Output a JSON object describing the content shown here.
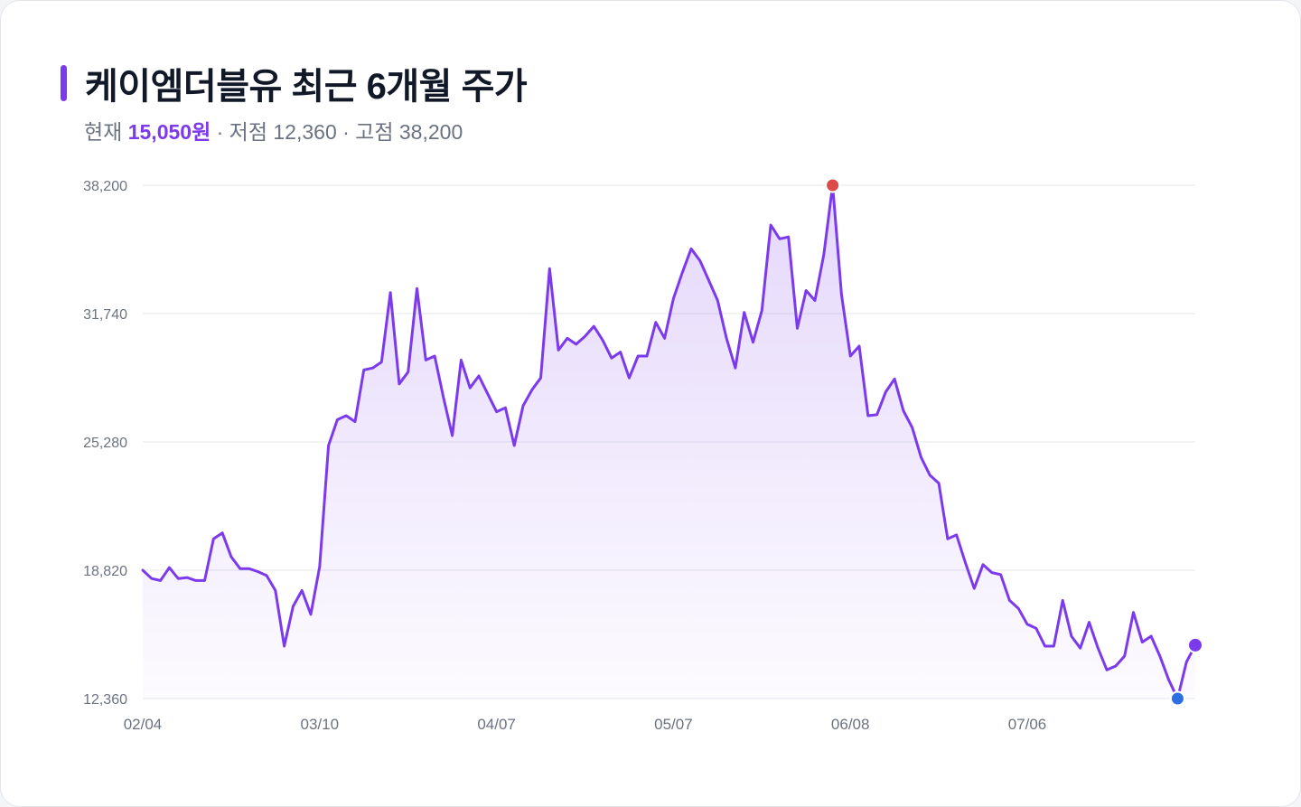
{
  "header": {
    "title": "케이엠더블유 최근 6개월 주가",
    "current_label": "현재",
    "current_value": "15,050원",
    "low_text": "· 저점 12,360",
    "high_text": "· 고점 38,200"
  },
  "colors": {
    "accent": "#7c3aed",
    "high_marker": "#dc4a4a",
    "low_marker": "#2b6fe0",
    "last_marker": "#7c3aed",
    "grid": "#e5e7eb"
  },
  "chart_data": {
    "type": "area",
    "title": "케이엠더블유 최근 6개월 주가",
    "xlabel": "",
    "ylabel": "",
    "ylim": [
      12360,
      38200
    ],
    "yticks": [
      12360,
      18820,
      25280,
      31740,
      38200
    ],
    "ytick_labels": [
      "12,360",
      "18,820",
      "25,280",
      "31,740",
      "38,200"
    ],
    "xtick_labels": [
      {
        "label": "02/04",
        "index": 0
      },
      {
        "label": "03/10",
        "index": 20
      },
      {
        "label": "04/07",
        "index": 40
      },
      {
        "label": "05/07",
        "index": 60
      },
      {
        "label": "06/08",
        "index": 80
      },
      {
        "label": "07/06",
        "index": 100
      }
    ],
    "grid": true,
    "series": [
      {
        "values": [
          18820,
          18400,
          18300,
          18950,
          18400,
          18450,
          18300,
          18300,
          20400,
          20700,
          19500,
          18900,
          18900,
          18750,
          18550,
          17800,
          15000,
          17000,
          17800,
          16600,
          19000,
          25100,
          26400,
          26600,
          26300,
          28900,
          29000,
          29300,
          32800,
          28200,
          28800,
          33000,
          29400,
          29600,
          27500,
          25600,
          29400,
          28000,
          28600,
          27700,
          26800,
          27000,
          25100,
          27100,
          27900,
          28500,
          34000,
          29900,
          30500,
          30200,
          30600,
          31100,
          30400,
          29500,
          29800,
          28500,
          29600,
          29600,
          31300,
          30500,
          32500,
          33800,
          35000,
          34400,
          33400,
          32400,
          30500,
          29000,
          31800,
          30300,
          31900,
          36200,
          35500,
          35600,
          31000,
          32900,
          32400,
          34700,
          38200,
          32700,
          29600,
          30100,
          26600,
          26650,
          27800,
          28450,
          26850,
          26000,
          24500,
          23600,
          23200,
          20400,
          20600,
          19200,
          17900,
          19100,
          18700,
          18600,
          17300,
          16900,
          16100,
          15900,
          15000,
          15000,
          17300,
          15500,
          14900,
          16200,
          14900,
          13800,
          14000,
          14500,
          16700,
          15200,
          15500,
          14500,
          13300,
          12360,
          14200,
          15050
        ]
      }
    ],
    "markers": [
      {
        "type": "high",
        "index": 78,
        "value": 38200
      },
      {
        "type": "low",
        "index": 117,
        "value": 12360
      },
      {
        "type": "last",
        "index": 119,
        "value": 15050
      }
    ]
  }
}
